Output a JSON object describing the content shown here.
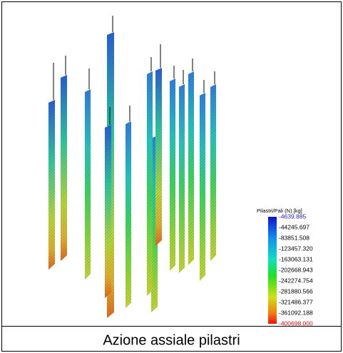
{
  "figure": {
    "legend": {
      "title": "Pilastri/Pali (N) [kg]",
      "labels": [
        "-4639.885",
        "-44245.697",
        "-83851.508",
        "-123457.320",
        "-163063.131",
        "-202668.943",
        "-242274.754",
        "-281880.566",
        "-321486.377",
        "-361092.188",
        "-400698.000"
      ]
    },
    "caption": "Azione assiale pilastri"
  }
}
